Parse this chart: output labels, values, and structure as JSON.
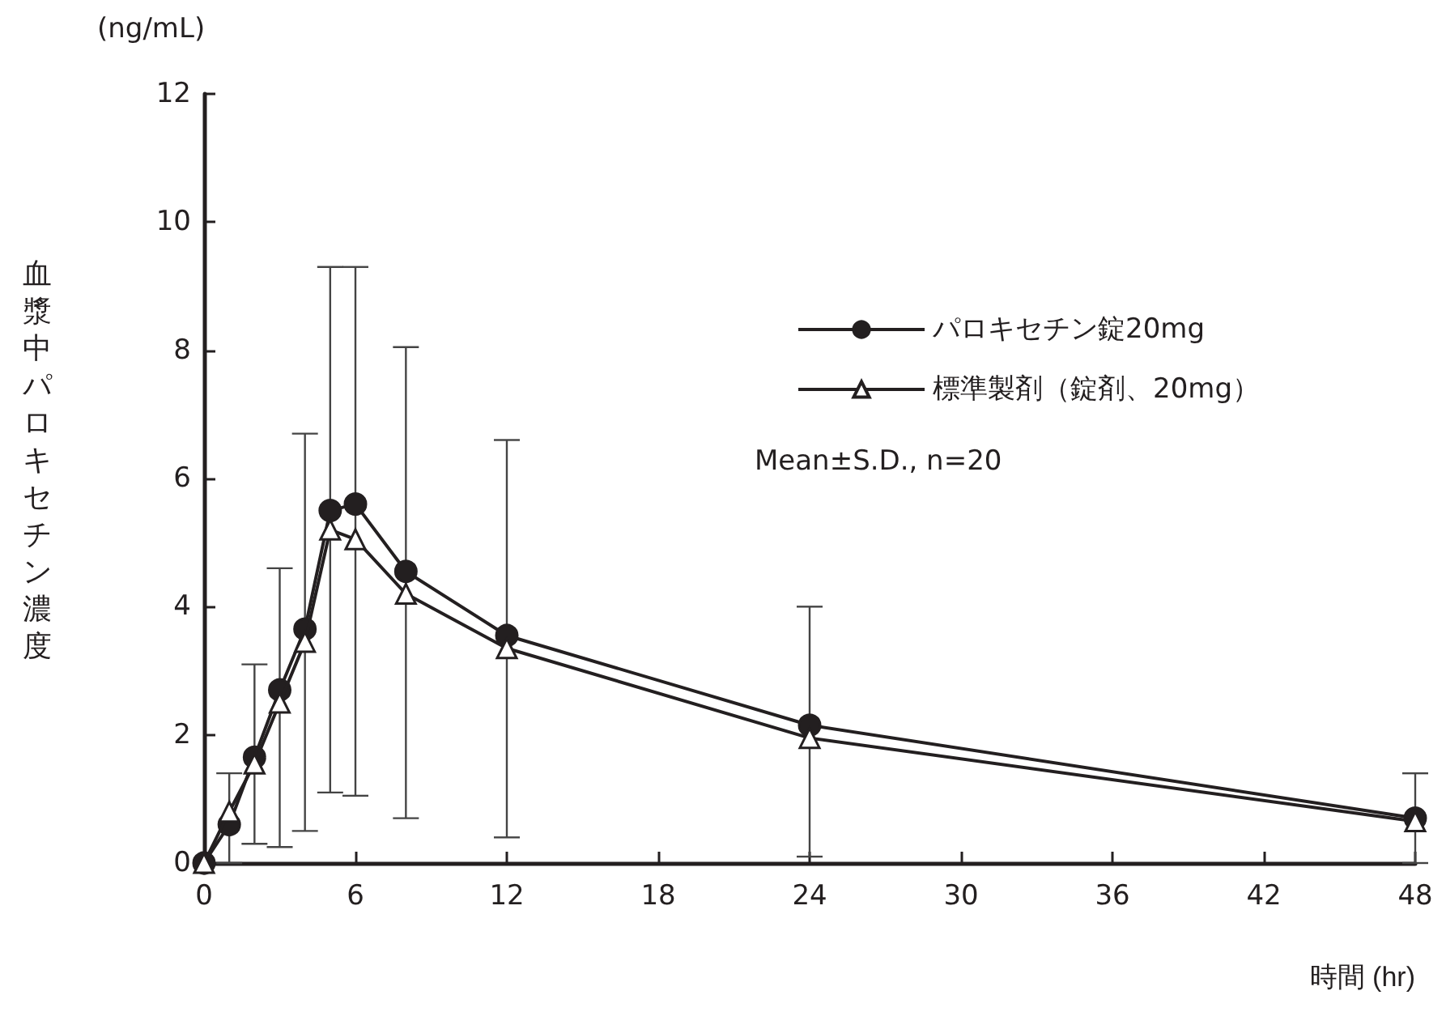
{
  "chart_data": {
    "type": "line",
    "xlabel": "時間 (hr)",
    "ylabel": "血漿中パロキセチン濃度",
    "annotations": [
      "(ng/mL)",
      "Mean±S.D., n=20"
    ],
    "x": [
      0,
      1,
      2,
      3,
      4,
      5,
      6,
      8,
      12,
      24,
      48
    ],
    "series": [
      {
        "name": "パロキセチン錠20mg",
        "color": "#231f20",
        "marker": "circle",
        "values": [
          0,
          0.6,
          1.65,
          2.7,
          3.65,
          5.5,
          5.6,
          4.55,
          3.55,
          2.15,
          0.7
        ],
        "errors": [
          null,
          [
            0,
            1.4
          ],
          [
            0.3,
            3.1
          ],
          [
            0.25,
            4.6
          ],
          [
            0.5,
            6.7
          ],
          [
            1.1,
            9.3
          ],
          [
            1.05,
            9.3
          ],
          [
            0.7,
            8.05
          ],
          [
            0.4,
            6.6
          ],
          [
            0.1,
            4.0
          ],
          [
            0,
            1.4
          ]
        ]
      },
      {
        "name": "標準製剤（錠剤、20mg）",
        "color": "#231f20",
        "marker": "triangle",
        "values": [
          0,
          0.8,
          1.55,
          2.5,
          3.45,
          5.2,
          5.05,
          4.2,
          3.35,
          1.95,
          0.65
        ]
      }
    ],
    "xlim": [
      0,
      48
    ],
    "xticks": [
      0,
      6,
      12,
      18,
      24,
      30,
      36,
      42,
      48
    ],
    "ylim": [
      0,
      12
    ],
    "yticks": [
      0,
      2,
      4,
      6,
      8,
      10,
      12
    ],
    "grid": false,
    "legend": "top right",
    "line_style": "solid"
  }
}
